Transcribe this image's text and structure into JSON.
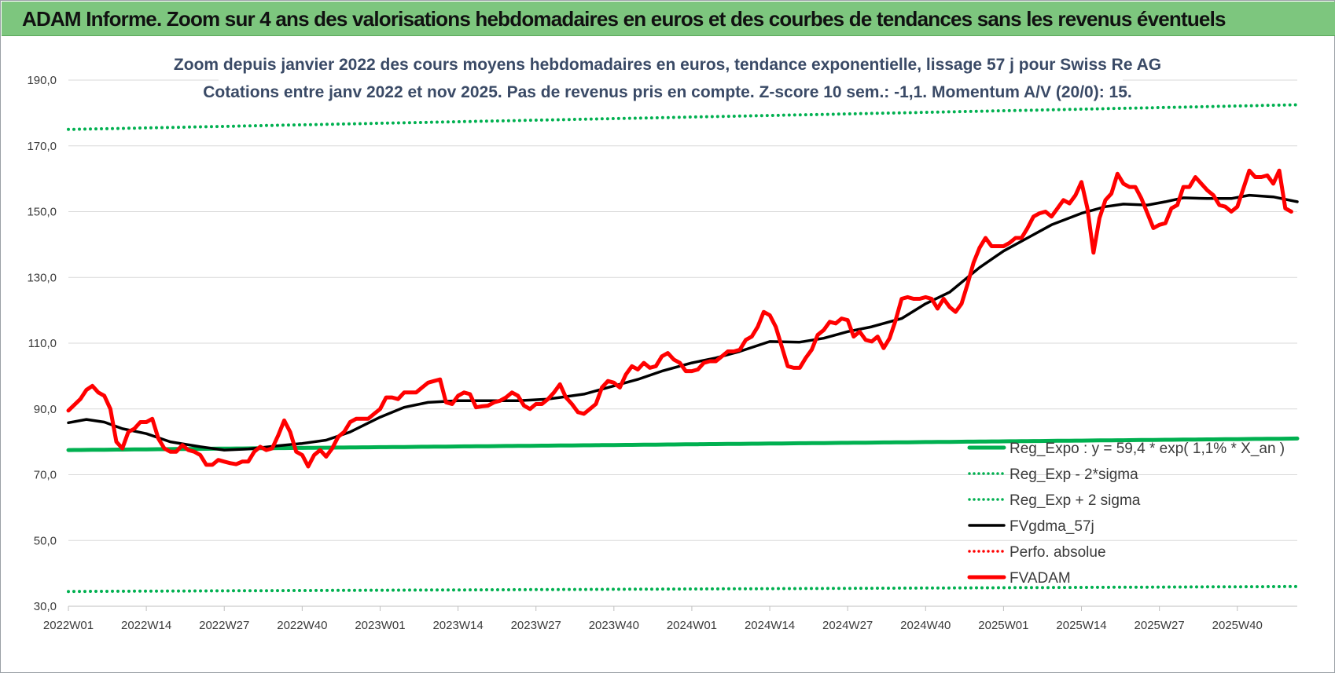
{
  "banner": {
    "title": "ADAM Informe. Zoom sur 4 ans des valorisations hebdomadaires en euros et des courbes de tendances sans les revenus éventuels",
    "color": "#7dc67e"
  },
  "chart_data": {
    "type": "line",
    "title": "Zoom depuis janvier 2022 des cours moyens hebdomadaires en euros, tendance exponentielle, lissage 57 j pour Swiss Re AG",
    "subtitle": "Cotations entre janv 2022 et nov 2025. Pas de revenus pris en compte. Z-score 10 sem.: -1,1. Momentum A/V (20/0): 15.",
    "xlabel": "",
    "ylabel": "",
    "ylim": [
      30,
      190
    ],
    "yticks": [
      "30,0",
      "50,0",
      "70,0",
      "90,0",
      "110,0",
      "130,0",
      "150,0",
      "170,0",
      "190,0"
    ],
    "xticks": [
      "2022W01",
      "2022W14",
      "2022W27",
      "2022W40",
      "2023W01",
      "2023W14",
      "2023W27",
      "2023W40",
      "2024W01",
      "2024W14",
      "2024W27",
      "2024W40",
      "2025W01",
      "2025W14",
      "2025W27",
      "2025W40"
    ],
    "x_tick_weeks": [
      0,
      13,
      26,
      39,
      52,
      65,
      78,
      91,
      104,
      117,
      130,
      143,
      156,
      169,
      182,
      195
    ],
    "n_weeks": 205,
    "grid": "horizontal",
    "legend_position": "bottom-right",
    "series": [
      {
        "name": "Reg_Expo : y = 59,4 * exp( 1,1% *  X_an )",
        "color": "#00b050",
        "style": "solid-thick",
        "start": 77.5,
        "end": 81.0
      },
      {
        "name": "Reg_Exp - 2*sigma",
        "color": "#00b050",
        "style": "dotted",
        "start": 34.5,
        "end": 36.0
      },
      {
        "name": "Reg_Exp + 2 sigma",
        "color": "#00b050",
        "style": "dotted",
        "start": 175.0,
        "end": 182.5
      },
      {
        "name": "FVgdma_57j",
        "color": "#000000",
        "style": "solid",
        "points": [
          [
            0,
            85.8
          ],
          [
            3,
            86.8
          ],
          [
            6,
            86
          ],
          [
            9,
            84
          ],
          [
            13,
            82.5
          ],
          [
            17,
            80
          ],
          [
            22,
            78.5
          ],
          [
            26,
            77.5
          ],
          [
            30,
            77.8
          ],
          [
            35,
            78.8
          ],
          [
            39,
            79.5
          ],
          [
            43,
            80.5
          ],
          [
            47,
            83
          ],
          [
            52,
            87.5
          ],
          [
            56,
            90.5
          ],
          [
            60,
            92
          ],
          [
            65,
            92.5
          ],
          [
            70,
            92.5
          ],
          [
            75,
            92.5
          ],
          [
            80,
            93
          ],
          [
            86,
            94.5
          ],
          [
            91,
            97
          ],
          [
            95,
            99
          ],
          [
            99,
            101.5
          ],
          [
            104,
            104
          ],
          [
            108,
            105.5
          ],
          [
            112,
            107.5
          ],
          [
            117,
            110.5
          ],
          [
            122,
            110.3
          ],
          [
            126,
            111.5
          ],
          [
            130,
            113.5
          ],
          [
            134,
            115
          ],
          [
            139,
            117.5
          ],
          [
            143,
            122
          ],
          [
            147,
            125.5
          ],
          [
            152,
            133
          ],
          [
            156,
            138
          ],
          [
            160,
            142
          ],
          [
            164,
            146
          ],
          [
            169,
            149.5
          ],
          [
            173,
            151.5
          ],
          [
            176,
            152.3
          ],
          [
            180,
            152
          ],
          [
            183,
            153
          ],
          [
            186,
            154.2
          ],
          [
            190,
            154
          ],
          [
            194,
            154
          ],
          [
            197,
            155
          ],
          [
            201,
            154.5
          ],
          [
            205,
            153
          ]
        ]
      },
      {
        "name": "Perfo. absolue",
        "color": "#ff0000",
        "style": "dotted",
        "points": []
      },
      {
        "name": "FVADAM",
        "color": "#ff0000",
        "style": "solid-thick",
        "points": [
          [
            0,
            89.5
          ],
          [
            2,
            93
          ],
          [
            3,
            95.8
          ],
          [
            4,
            97
          ],
          [
            5,
            95
          ],
          [
            6,
            94
          ],
          [
            7,
            90
          ],
          [
            8,
            80
          ],
          [
            9,
            78
          ],
          [
            10,
            83
          ],
          [
            11,
            84
          ],
          [
            12,
            86
          ],
          [
            13,
            86
          ],
          [
            14,
            87
          ],
          [
            15,
            81
          ],
          [
            16,
            78
          ],
          [
            17,
            77
          ],
          [
            18,
            77
          ],
          [
            19,
            79
          ],
          [
            20,
            77.5
          ],
          [
            21,
            77
          ],
          [
            22,
            76
          ],
          [
            23,
            73
          ],
          [
            24,
            73
          ],
          [
            25,
            74.5
          ],
          [
            26,
            74
          ],
          [
            27,
            73.5
          ],
          [
            28,
            73.2
          ],
          [
            29,
            74
          ],
          [
            30,
            74
          ],
          [
            31,
            77
          ],
          [
            32,
            78.5
          ],
          [
            33,
            77.5
          ],
          [
            34,
            78
          ],
          [
            35,
            82
          ],
          [
            36,
            86.5
          ],
          [
            37,
            83
          ],
          [
            38,
            77
          ],
          [
            39,
            76
          ],
          [
            40,
            72.5
          ],
          [
            41,
            76
          ],
          [
            42,
            77.5
          ],
          [
            43,
            75.5
          ],
          [
            44,
            78
          ],
          [
            45,
            81.5
          ],
          [
            46,
            83
          ],
          [
            47,
            86
          ],
          [
            48,
            87
          ],
          [
            49,
            87
          ],
          [
            50,
            87
          ],
          [
            51,
            88.5
          ],
          [
            52,
            90
          ],
          [
            53,
            93.5
          ],
          [
            54,
            93.5
          ],
          [
            55,
            93
          ],
          [
            56,
            95
          ],
          [
            57,
            95
          ],
          [
            58,
            95
          ],
          [
            59,
            96.5
          ],
          [
            60,
            98
          ],
          [
            61,
            98.5
          ],
          [
            62,
            99
          ],
          [
            63,
            92
          ],
          [
            64,
            91.5
          ],
          [
            65,
            94
          ],
          [
            66,
            95
          ],
          [
            67,
            94.5
          ],
          [
            68,
            90.5
          ],
          [
            69,
            90.8
          ],
          [
            70,
            91
          ],
          [
            71,
            92
          ],
          [
            72,
            92.5
          ],
          [
            73,
            93.5
          ],
          [
            74,
            95
          ],
          [
            75,
            94
          ],
          [
            76,
            91
          ],
          [
            77,
            90
          ],
          [
            78,
            91.5
          ],
          [
            79,
            91.5
          ],
          [
            80,
            93
          ],
          [
            81,
            95
          ],
          [
            82,
            97.5
          ],
          [
            83,
            93.5
          ],
          [
            84,
            91.5
          ],
          [
            85,
            89
          ],
          [
            86,
            88.5
          ],
          [
            87,
            90
          ],
          [
            88,
            91.5
          ],
          [
            89,
            96.5
          ],
          [
            90,
            98.5
          ],
          [
            91,
            98
          ],
          [
            92,
            96.5
          ],
          [
            93,
            100.5
          ],
          [
            94,
            103
          ],
          [
            95,
            102
          ],
          [
            96,
            104
          ],
          [
            97,
            102.5
          ],
          [
            98,
            103
          ],
          [
            99,
            106
          ],
          [
            100,
            107
          ],
          [
            101,
            105
          ],
          [
            102,
            104
          ],
          [
            103,
            101.5
          ],
          [
            104,
            101.5
          ],
          [
            105,
            102
          ],
          [
            106,
            104
          ],
          [
            107,
            104.5
          ],
          [
            108,
            104.5
          ],
          [
            109,
            106
          ],
          [
            110,
            107.5
          ],
          [
            111,
            107.5
          ],
          [
            112,
            108
          ],
          [
            113,
            111
          ],
          [
            114,
            112
          ],
          [
            115,
            115
          ],
          [
            116,
            119.5
          ],
          [
            117,
            118.5
          ],
          [
            118,
            115
          ],
          [
            119,
            109
          ],
          [
            120,
            103
          ],
          [
            121,
            102.5
          ],
          [
            122,
            102.5
          ],
          [
            123,
            105.5
          ],
          [
            124,
            108
          ],
          [
            125,
            112.5
          ],
          [
            126,
            114
          ],
          [
            127,
            116.5
          ],
          [
            128,
            116
          ],
          [
            129,
            117.5
          ],
          [
            130,
            117
          ],
          [
            131,
            112
          ],
          [
            132,
            113.5
          ],
          [
            133,
            111
          ],
          [
            134,
            110.5
          ],
          [
            135,
            112
          ],
          [
            136,
            108.5
          ],
          [
            137,
            111.5
          ],
          [
            138,
            117
          ],
          [
            139,
            123.5
          ],
          [
            140,
            124
          ],
          [
            141,
            123.5
          ],
          [
            142,
            123.5
          ],
          [
            143,
            124
          ],
          [
            144,
            123.5
          ],
          [
            145,
            120.5
          ],
          [
            146,
            123.5
          ],
          [
            147,
            121
          ],
          [
            148,
            119.5
          ],
          [
            149,
            122
          ],
          [
            150,
            128
          ],
          [
            151,
            134.5
          ],
          [
            152,
            139
          ],
          [
            153,
            142
          ],
          [
            154,
            139.5
          ],
          [
            155,
            139.5
          ],
          [
            156,
            139.5
          ],
          [
            157,
            140.5
          ],
          [
            158,
            142
          ],
          [
            159,
            142
          ],
          [
            160,
            145
          ],
          [
            161,
            148.5
          ],
          [
            162,
            149.5
          ],
          [
            163,
            150
          ],
          [
            164,
            148.5
          ],
          [
            165,
            151
          ],
          [
            166,
            153.5
          ],
          [
            167,
            152.5
          ],
          [
            168,
            155
          ],
          [
            169,
            159
          ],
          [
            170,
            151
          ],
          [
            171,
            137.5
          ],
          [
            172,
            148
          ],
          [
            173,
            153.5
          ],
          [
            174,
            155.5
          ],
          [
            175,
            161.5
          ],
          [
            176,
            158.5
          ],
          [
            177,
            157.5
          ],
          [
            178,
            157.5
          ],
          [
            179,
            154
          ],
          [
            180,
            149.5
          ],
          [
            181,
            145
          ],
          [
            182,
            146
          ],
          [
            183,
            146.5
          ],
          [
            184,
            151
          ],
          [
            185,
            152
          ],
          [
            186,
            157.5
          ],
          [
            187,
            157.5
          ],
          [
            188,
            160.5
          ],
          [
            189,
            158.5
          ],
          [
            190,
            156.5
          ],
          [
            191,
            155
          ],
          [
            192,
            152
          ],
          [
            193,
            151.5
          ],
          [
            194,
            150
          ],
          [
            195,
            151.5
          ],
          [
            196,
            157
          ],
          [
            197,
            162.5
          ],
          [
            198,
            160.5
          ],
          [
            199,
            160.5
          ],
          [
            200,
            161
          ],
          [
            201,
            158.5
          ],
          [
            202,
            162.5
          ],
          [
            203,
            151
          ],
          [
            204,
            150
          ]
        ]
      }
    ]
  }
}
